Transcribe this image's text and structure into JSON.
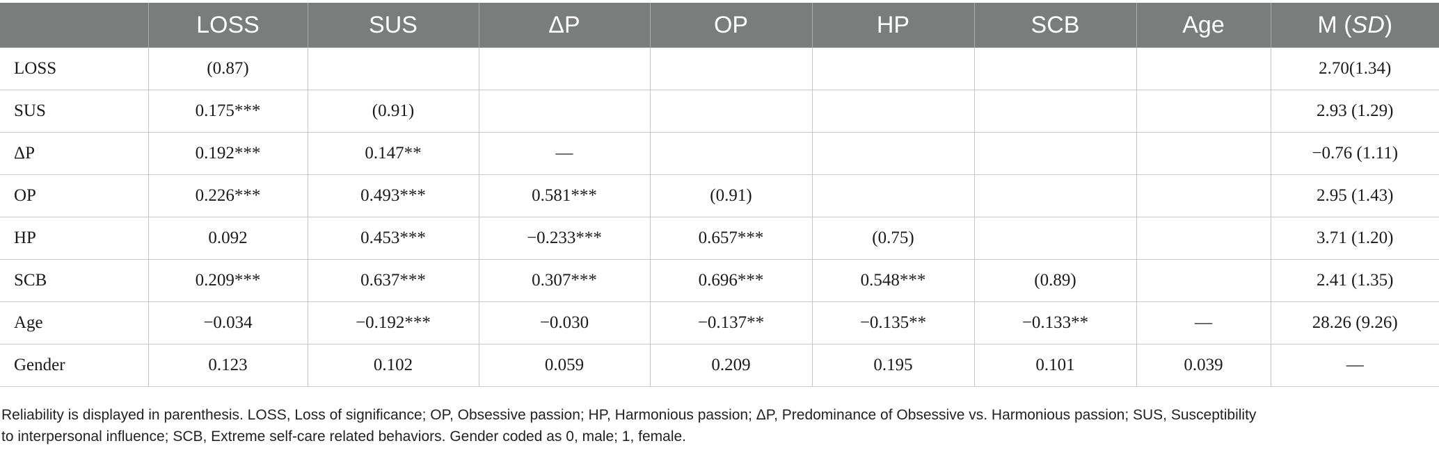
{
  "table": {
    "headers": [
      "",
      "LOSS",
      "SUS",
      "ΔP",
      "OP",
      "HP",
      "SCB",
      "Age"
    ],
    "last_header": {
      "prefix": "M (",
      "italic": "SD",
      "suffix": ")"
    },
    "rows": [
      {
        "label": "LOSS",
        "cells": [
          "(0.87)",
          "",
          "",
          "",
          "",
          "",
          "",
          "2.70(1.34)"
        ]
      },
      {
        "label": "SUS",
        "cells": [
          "0.175***",
          "(0.91)",
          "",
          "",
          "",
          "",
          "",
          "2.93 (1.29)"
        ]
      },
      {
        "label": "ΔP",
        "cells": [
          "0.192***",
          "0.147**",
          "—",
          "",
          "",
          "",
          "",
          "−0.76 (1.11)"
        ]
      },
      {
        "label": "OP",
        "cells": [
          "0.226***",
          "0.493***",
          "0.581***",
          "(0.91)",
          "",
          "",
          "",
          "2.95 (1.43)"
        ]
      },
      {
        "label": "HP",
        "cells": [
          "0.092",
          "0.453***",
          "−0.233***",
          "0.657***",
          "(0.75)",
          "",
          "",
          "3.71 (1.20)"
        ]
      },
      {
        "label": "SCB",
        "cells": [
          "0.209***",
          "0.637***",
          "0.307***",
          "0.696***",
          "0.548***",
          "(0.89)",
          "",
          "2.41 (1.35)"
        ]
      },
      {
        "label": "Age",
        "cells": [
          "−0.034",
          "−0.192***",
          "−0.030",
          "−0.137**",
          "−0.135**",
          "−0.133**",
          "—",
          "28.26 (9.26)"
        ]
      },
      {
        "label": "Gender",
        "cells": [
          "0.123",
          "0.102",
          "0.059",
          "0.209",
          "0.195",
          "0.101",
          "0.039",
          "—"
        ]
      }
    ]
  },
  "note": {
    "line1": "Reliability is displayed in parenthesis. LOSS, Loss of significance; OP, Obsessive passion; HP, Harmonious passion; ΔP, Predominance of Obsessive vs. Harmonious passion; SUS, Susceptibility",
    "line2": "to interpersonal influence; SCB, Extreme self-care related behaviors. Gender coded as 0, male; 1, female."
  }
}
